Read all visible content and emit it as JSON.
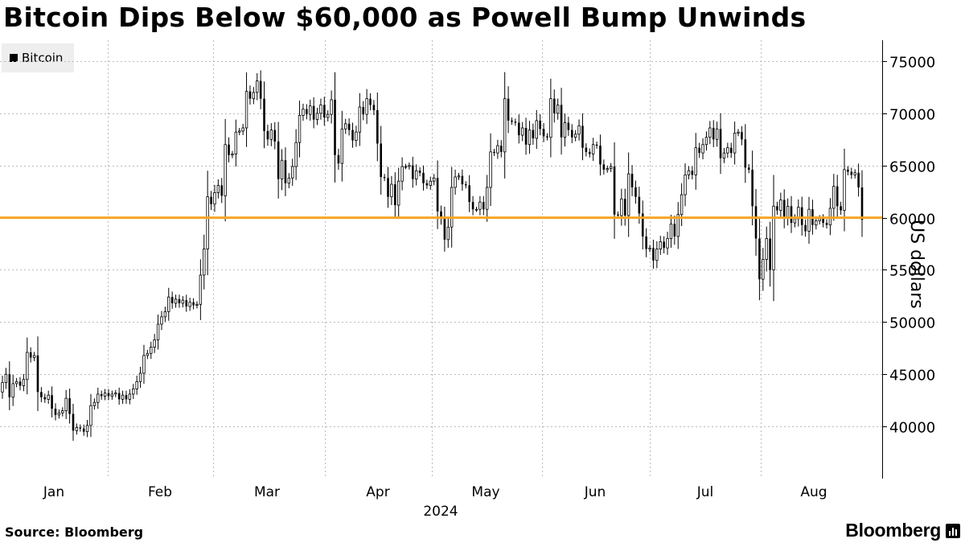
{
  "title": "Bitcoin Dips Below $60,000 as Powell Bump Unwinds",
  "legend": {
    "label": "Bitcoin"
  },
  "source": "Source: Bloomberg",
  "brand": "Bloomberg",
  "colors": {
    "candle": "#000000",
    "reference_line": "#f5a623",
    "grid": "#bbbbbb",
    "legend_bg": "#eeeeee"
  },
  "chart_data": {
    "type": "candlestick",
    "title": "Bitcoin Dips Below $60,000 as Powell Bump Unwinds",
    "ylabel": "US dollars",
    "year_label": "2024",
    "x_tick_labels": [
      "Jan",
      "Feb",
      "Mar",
      "Apr",
      "May",
      "Jun",
      "Jul",
      "Aug"
    ],
    "y_ticks": [
      40000,
      45000,
      50000,
      55000,
      60000,
      65000,
      70000,
      75000
    ],
    "y_tick_labels": [
      "40000",
      "45000",
      "50000",
      "55000",
      "60000",
      "65000",
      "70000",
      "75000"
    ],
    "ylim": [
      35000,
      77000
    ],
    "reference_line": {
      "value": 60000,
      "color": "#f5a623"
    },
    "grid": true,
    "legend_position": "top-left",
    "series": [
      {
        "name": "Bitcoin",
        "closes": [
          44200,
          45000,
          42800,
          44100,
          44300,
          43900,
          44500,
          47100,
          46600,
          46800,
          43300,
          42800,
          42600,
          43000,
          41700,
          41100,
          41300,
          41500,
          42700,
          41200,
          39600,
          39900,
          39800,
          39500,
          40100,
          42000,
          42300,
          43100,
          42900,
          43200,
          42900,
          43100,
          43200,
          42600,
          43000,
          42600,
          43100,
          43600,
          44300,
          45100,
          46800,
          47000,
          47600,
          48300,
          49800,
          50500,
          51000,
          52400,
          51800,
          52200,
          51800,
          52100,
          51500,
          51900,
          51600,
          51700,
          54500,
          57000,
          62000,
          61300,
          62400,
          63100,
          62100,
          67000,
          66000,
          66100,
          68200,
          68300,
          68600,
          72100,
          71400,
          72000,
          73100,
          71400,
          68300,
          67500,
          68400,
          67300,
          63700,
          65500,
          63300,
          63800,
          64900,
          67200,
          69800,
          70400,
          69900,
          70700,
          69400,
          70000,
          70800,
          69600,
          69900,
          71300,
          66000,
          65200,
          68500,
          69000,
          68400,
          67400,
          68200,
          70600,
          69900,
          71400,
          70800,
          70300,
          67100,
          63900,
          63800,
          62000,
          63200,
          61200,
          63500,
          64900,
          64900,
          65000,
          63700,
          64500,
          64300,
          63300,
          63100,
          63500,
          63800,
          60600,
          59900,
          57900,
          59100,
          62900,
          63900,
          64000,
          63200,
          63100,
          61500,
          60800,
          60800,
          61500,
          60800,
          62900,
          66300,
          66200,
          66900,
          66300,
          71400,
          69300,
          69200,
          69100,
          67900,
          68600,
          67000,
          68400,
          67600,
          69300,
          68500,
          67800,
          67700,
          71400,
          70000,
          70800,
          67700,
          69100,
          68400,
          67700,
          68000,
          68800,
          66700,
          66300,
          66100,
          67000,
          66900,
          65100,
          64600,
          64700,
          64900,
          60300,
          60200,
          61800,
          60200,
          64200,
          62900,
          62000,
          60400,
          58200,
          57000,
          57100,
          55900,
          57000,
          57700,
          57100,
          58000,
          59400,
          58200,
          60300,
          62200,
          64100,
          64500,
          64100,
          66700,
          66200,
          67000,
          67700,
          68600,
          67500,
          68500,
          65700,
          66200,
          66700,
          66200,
          68100,
          68200,
          67500,
          64800,
          64600,
          61100,
          58000,
          54100,
          56000,
          58000,
          55000,
          61100,
          60700,
          61700,
          60000,
          61100,
          59500,
          59900,
          61000,
          59300,
          58700,
          60800,
          59300,
          59700,
          59900,
          59500,
          59300,
          60900,
          63000,
          61100,
          60700,
          64600,
          64400,
          64100,
          64300,
          62900,
          59800
        ]
      }
    ]
  }
}
